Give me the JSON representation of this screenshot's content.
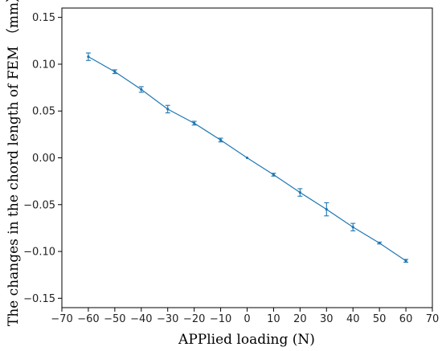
{
  "chart_data": {
    "type": "line",
    "xlabel": "APPlied loading (N)",
    "ylabel": "The changes in the chord length of FEM  （mm）",
    "xlim": [
      -70,
      70
    ],
    "ylim": [
      -0.16,
      0.16
    ],
    "xticks": [
      -70,
      -60,
      -50,
      -40,
      -30,
      -20,
      -10,
      0,
      10,
      20,
      30,
      40,
      50,
      60,
      70
    ],
    "yticks": [
      -0.15,
      -0.1,
      -0.05,
      0.0,
      0.05,
      0.1,
      0.15
    ],
    "xtick_labels": [
      "−70",
      "−60",
      "−50",
      "−40",
      "−30",
      "−20",
      "−10",
      "0",
      "10",
      "20",
      "30",
      "40",
      "50",
      "60",
      "70"
    ],
    "ytick_labels": [
      "−0.15",
      "−0.10",
      "−0.05",
      "0.00",
      "0.05",
      "0.10",
      "0.15"
    ],
    "grid": false,
    "series": [
      {
        "color": "#1f77b4",
        "x": [
          -60,
          -50,
          -40,
          -30,
          -20,
          -10,
          0,
          10,
          20,
          30,
          40,
          50,
          60
        ],
        "y": [
          0.108,
          0.092,
          0.073,
          0.052,
          0.037,
          0.019,
          0.0,
          -0.018,
          -0.037,
          -0.055,
          -0.074,
          -0.091,
          -0.11
        ],
        "error": [
          0.004,
          0.002,
          0.003,
          0.004,
          0.002,
          0.002,
          0.0,
          0.0015,
          0.004,
          0.007,
          0.004,
          0.001,
          0.0015
        ]
      }
    ]
  }
}
